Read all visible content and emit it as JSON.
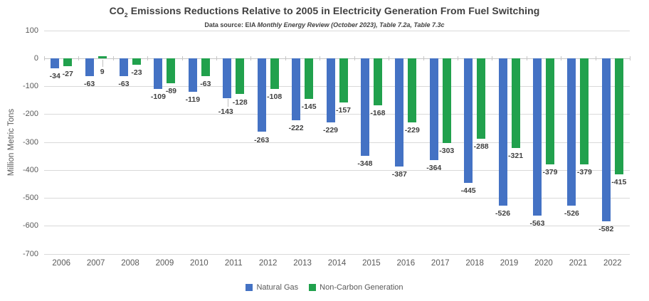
{
  "header": {
    "title_prefix": "CO",
    "title_subscript": "2",
    "title_rest": " Emissions Reductions Relative to 2005 in Electricity Generation From Fuel Switching",
    "subtitle_plain": "Data source: EIA ",
    "subtitle_italic": "Monthly Energy Review (October 2023), Table 7.2a, Table 7.3c"
  },
  "chart_data": {
    "type": "bar",
    "title": "CO2 Emissions Reductions Relative to 2005 in Electricity Generation From Fuel Switching",
    "subtitle": "Data source: EIA Monthly Energy Review (October 2023), Table 7.2a, Table 7.3c",
    "ylabel": "Million Metric Tons",
    "ylim": [
      -700,
      100
    ],
    "ytick_step": 100,
    "grid": true,
    "legend_position": "bottom-center",
    "categories": [
      "2006",
      "2007",
      "2008",
      "2009",
      "2010",
      "2011",
      "2012",
      "2013",
      "2014",
      "2015",
      "2016",
      "2017",
      "2018",
      "2019",
      "2020",
      "2021",
      "2022"
    ],
    "series": [
      {
        "name": "Natural Gas",
        "color": "#4472C4",
        "values": [
          -34,
          -63,
          -63,
          -109,
          -119,
          -143,
          -263,
          -222,
          -229,
          -348,
          -387,
          -364,
          -445,
          -526,
          -563,
          -526,
          -582
        ]
      },
      {
        "name": "Non-Carbon Generation",
        "color": "#21A14D",
        "values": [
          -27,
          9,
          -23,
          -89,
          -63,
          -128,
          -108,
          -145,
          -157,
          -168,
          -229,
          -303,
          -288,
          -321,
          -379,
          -379,
          -415
        ]
      }
    ],
    "label_leaders": [
      "2007|Non-Carbon Generation",
      "2011|Natural Gas"
    ]
  },
  "colors": {
    "gridline": "#D9D9D9",
    "axis_line": "#C6C6C6",
    "axis_text": "#595959",
    "title_text": "#404040",
    "data_label_text": "#404040",
    "background": "#FFFFFF"
  }
}
